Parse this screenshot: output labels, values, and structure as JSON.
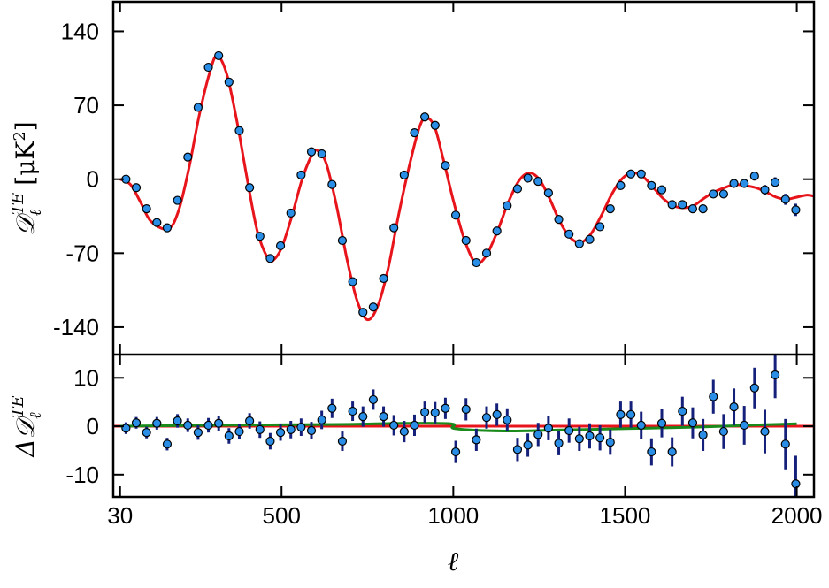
{
  "chart_data": {
    "type": "errorbar",
    "x": [
      47,
      77,
      107,
      137,
      167,
      197,
      227,
      257,
      287,
      317,
      347,
      377,
      407,
      437,
      467,
      497,
      527,
      557,
      587,
      617,
      647,
      677,
      707,
      737,
      767,
      797,
      827,
      857,
      887,
      917,
      947,
      977,
      1007,
      1037,
      1067,
      1097,
      1127,
      1157,
      1187,
      1217,
      1247,
      1277,
      1307,
      1337,
      1367,
      1397,
      1427,
      1457,
      1487,
      1517,
      1547,
      1577,
      1607,
      1637,
      1667,
      1697,
      1727,
      1757,
      1787,
      1817,
      1847,
      1877,
      1907,
      1937,
      1967,
      1997
    ],
    "values": [
      0,
      -8,
      -28,
      -41,
      -46,
      -20,
      21,
      68,
      106,
      117,
      92,
      46,
      -8,
      -54,
      -75,
      -63,
      -32,
      4,
      26,
      24,
      -5,
      -58,
      -97,
      -126,
      -121,
      -94,
      -46,
      4,
      44,
      59,
      51,
      13,
      -34,
      -58,
      -79,
      -70,
      -49,
      -25,
      -9,
      1,
      -2,
      -13,
      -38,
      -52,
      -61,
      -57,
      -45,
      -28,
      -6,
      5,
      5,
      -6,
      -10,
      -24,
      -24,
      -28,
      -28,
      -14,
      -14,
      -4,
      -4,
      3,
      -10,
      -3,
      -19,
      -29
    ],
    "residuals": [
      -0.4,
      0.7,
      -1.3,
      0.6,
      -3.7,
      1.1,
      0.2,
      -1.3,
      0.2,
      0.6,
      -2.0,
      -1.1,
      1.1,
      -0.7,
      -3.1,
      -1.3,
      -0.7,
      -0.2,
      -0.9,
      1.3,
      3.7,
      -3.1,
      3.1,
      2.0,
      5.5,
      2.0,
      0.2,
      -1.1,
      0.2,
      2.9,
      2.8,
      3.7,
      -5.3,
      3.5,
      -2.8,
      1.8,
      2.4,
      1.3,
      -4.8,
      -3.9,
      -1.7,
      -0.4,
      -3.5,
      -0.9,
      -2.6,
      -2.0,
      -2.4,
      -3.3,
      2.4,
      2.4,
      0.2,
      -5.3,
      0.6,
      -5.3,
      3.1,
      0.7,
      -1.8,
      6.1,
      -1.1,
      4.0,
      0.2,
      7.9,
      -1.1,
      10.6,
      -3.7,
      -11.9
    ],
    "errors": [
      1.2,
      1.2,
      1.2,
      1.3,
      1.3,
      1.4,
      1.4,
      1.5,
      1.5,
      1.5,
      1.6,
      1.6,
      1.6,
      1.7,
      1.7,
      1.7,
      1.8,
      1.8,
      1.8,
      1.9,
      2.0,
      2.0,
      2.0,
      2.1,
      2.1,
      2.1,
      2.1,
      2.2,
      2.2,
      2.2,
      2.2,
      2.2,
      2.3,
      2.3,
      2.3,
      2.3,
      2.3,
      2.4,
      2.4,
      2.4,
      2.4,
      2.5,
      2.5,
      2.5,
      2.5,
      2.6,
      2.6,
      2.6,
      2.7,
      2.7,
      2.8,
      2.8,
      2.9,
      3.0,
      3.0,
      3.2,
      3.3,
      3.5,
      3.6,
      3.8,
      4.0,
      4.2,
      4.5,
      4.8,
      5.2,
      5.8
    ],
    "model": {
      "x": [
        30,
        60,
        90,
        120,
        170,
        200,
        230,
        260,
        290,
        312,
        340,
        370,
        400,
        430,
        460,
        475,
        500,
        530,
        560,
        590,
        605,
        630,
        660,
        690,
        720,
        750,
        780,
        810,
        840,
        870,
        900,
        920,
        945,
        970,
        1000,
        1030,
        1060,
        1075,
        1100,
        1130,
        1160,
        1190,
        1220,
        1250,
        1280,
        1310,
        1340,
        1370,
        1400,
        1430,
        1460,
        1490,
        1520,
        1550,
        1580,
        1610,
        1640,
        1670,
        1700,
        1730,
        1760,
        1790,
        1820,
        1850,
        1880,
        1910,
        1940,
        1970,
        2000,
        2030,
        2050
      ],
      "values": [
        0,
        -5,
        -22,
        -40,
        -47,
        -30,
        10,
        60,
        100,
        117,
        100,
        55,
        0,
        -50,
        -75,
        -77,
        -65,
        -35,
        0,
        24,
        27,
        15,
        -25,
        -75,
        -115,
        -133,
        -120,
        -85,
        -35,
        10,
        48,
        58,
        50,
        20,
        -20,
        -55,
        -78,
        -80,
        -70,
        -48,
        -22,
        -2,
        6,
        0,
        -18,
        -40,
        -55,
        -60,
        -52,
        -35,
        -15,
        0,
        6,
        3,
        -7,
        -18,
        -25,
        -27,
        -25,
        -18,
        -12,
        -8,
        -5,
        -6,
        -8,
        -12,
        -17,
        -19,
        -17,
        -15,
        -16
      ],
      "color": "#e8141b"
    },
    "foreground": {
      "x": [
        30,
        300,
        500,
        700,
        850,
        995,
        1005,
        1150,
        1300,
        1500,
        1700,
        1900,
        2000
      ],
      "values": [
        0,
        0.2,
        0.3,
        0.4,
        0.6,
        0.5,
        -0.5,
        -1.0,
        -0.8,
        -0.5,
        -0.2,
        0.3,
        0.5
      ],
      "color": "#1a8a1a"
    },
    "point_color": "#2a8ee6",
    "error_color": "#14207a",
    "xlim": [
      10,
      2050
    ],
    "xticks": [
      30,
      500,
      1000,
      1500,
      2000
    ],
    "ylim": [
      -166,
      168
    ],
    "yticks": [
      -140,
      -70,
      0,
      70,
      140
    ],
    "residual_ylim": [
      -14.6,
      14.8
    ],
    "residual_yticks": [
      -10,
      0,
      10
    ],
    "xlabel": "ℓ",
    "ylabel": {
      "symbol": "𝒟",
      "sub": "ℓ",
      "sup": "TE",
      "unit": "[μK",
      "unit_sup": "2",
      "close": "]"
    },
    "residual_ylabel": {
      "symbol": "Δ𝒟",
      "sub": "ℓ",
      "sup": "TE"
    }
  }
}
